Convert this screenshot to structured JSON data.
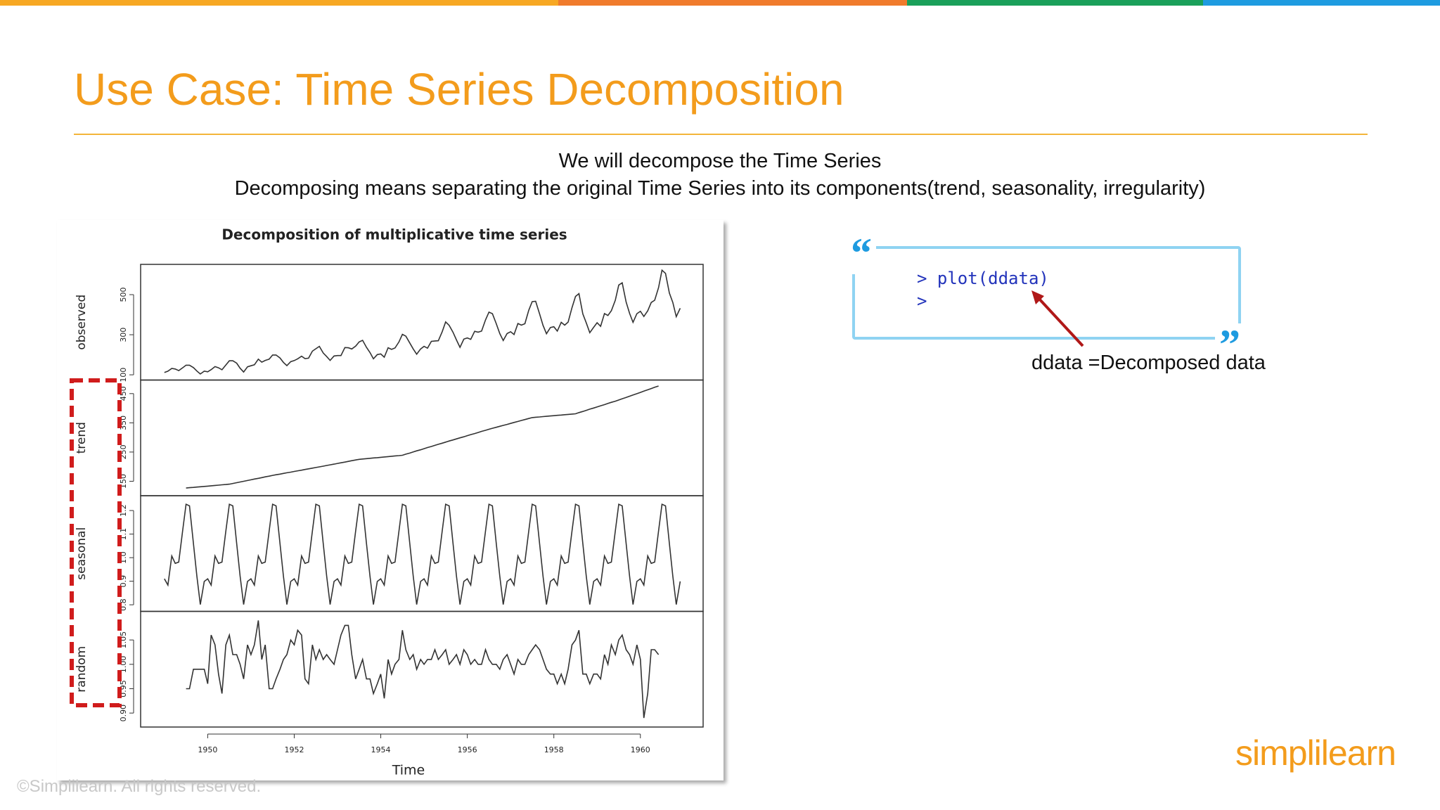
{
  "header": {
    "title": "Use Case: Time Series Decomposition"
  },
  "intro": {
    "lines": [
      "We will decompose the Time Series",
      "Decomposing means separating the original Time Series into its components(trend, seasonality, irregularity)"
    ]
  },
  "chart_data": {
    "type": "line",
    "title": "Decomposition of multiplicative time series",
    "xlabel": "Time",
    "color": "#333333",
    "xlim": [
      1948.45,
      1961.45
    ],
    "xticks": [
      1950,
      1952,
      1954,
      1956,
      1958,
      1960
    ],
    "x": [
      1949,
      1949.08,
      1949.17,
      1949.25,
      1949.33,
      1949.42,
      1949.5,
      1949.58,
      1949.67,
      1949.75,
      1949.83,
      1949.92,
      1950,
      1950.08,
      1950.17,
      1950.25,
      1950.33,
      1950.42,
      1950.5,
      1950.58,
      1950.67,
      1950.75,
      1950.83,
      1950.92,
      1951,
      1951.08,
      1951.17,
      1951.25,
      1951.33,
      1951.42,
      1951.5,
      1951.58,
      1951.67,
      1951.75,
      1951.83,
      1951.92,
      1952,
      1952.08,
      1952.17,
      1952.25,
      1952.33,
      1952.42,
      1952.5,
      1952.58,
      1952.67,
      1952.75,
      1952.83,
      1952.92,
      1953,
      1953.08,
      1953.17,
      1953.25,
      1953.33,
      1953.42,
      1953.5,
      1953.58,
      1953.67,
      1953.75,
      1953.83,
      1953.92,
      1954,
      1954.08,
      1954.17,
      1954.25,
      1954.33,
      1954.42,
      1954.5,
      1954.58,
      1954.67,
      1954.75,
      1954.83,
      1954.92,
      1955,
      1955.08,
      1955.17,
      1955.25,
      1955.33,
      1955.42,
      1955.5,
      1955.58,
      1955.67,
      1955.75,
      1955.83,
      1955.92,
      1956,
      1956.08,
      1956.17,
      1956.25,
      1956.33,
      1956.42,
      1956.5,
      1956.58,
      1956.67,
      1956.75,
      1956.83,
      1956.92,
      1957,
      1957.08,
      1957.17,
      1957.25,
      1957.33,
      1957.42,
      1957.5,
      1957.58,
      1957.67,
      1957.75,
      1957.83,
      1957.92,
      1958,
      1958.08,
      1958.17,
      1958.25,
      1958.33,
      1958.42,
      1958.5,
      1958.58,
      1958.67,
      1958.75,
      1958.83,
      1958.92,
      1959,
      1959.08,
      1959.17,
      1959.25,
      1959.33,
      1959.42,
      1959.5,
      1959.58,
      1959.67,
      1959.75,
      1959.83,
      1959.92,
      1960,
      1960.08,
      1960.17,
      1960.25,
      1960.33,
      1960.42,
      1960.5,
      1960.58,
      1960.67,
      1960.75,
      1960.83,
      1960.92
    ],
    "panels": [
      {
        "ylabel": "observed",
        "ylim": [
          95,
          630
        ],
        "yticks": [
          100,
          300,
          500
        ],
        "values": [
          112,
          118,
          132,
          129,
          121,
          135,
          148,
          148,
          136,
          119,
          104,
          118,
          115,
          126,
          141,
          135,
          125,
          149,
          170,
          170,
          158,
          133,
          114,
          140,
          145,
          150,
          178,
          163,
          172,
          178,
          199,
          199,
          184,
          162,
          146,
          166,
          171,
          180,
          193,
          181,
          183,
          218,
          230,
          242,
          209,
          191,
          172,
          194,
          196,
          196,
          236,
          235,
          229,
          243,
          264,
          272,
          237,
          211,
          180,
          201,
          204,
          188,
          235,
          227,
          234,
          264,
          302,
          293,
          259,
          229,
          203,
          229,
          242,
          233,
          267,
          269,
          270,
          315,
          364,
          347,
          312,
          274,
          237,
          278,
          284,
          277,
          317,
          313,
          318,
          374,
          413,
          405,
          355,
          306,
          271,
          306,
          315,
          301,
          356,
          348,
          355,
          422,
          465,
          467,
          404,
          347,
          305,
          336,
          340,
          318,
          362,
          348,
          363,
          435,
          491,
          505,
          404,
          359,
          310,
          337,
          360,
          342,
          406,
          396,
          420,
          472,
          548,
          559,
          463,
          407,
          362,
          405,
          417,
          391,
          419,
          461,
          472,
          535,
          622,
          606,
          508,
          461,
          390,
          432
        ]
      },
      {
        "ylabel": "trend",
        "ylim": [
          115,
          482
        ],
        "yticks": [
          150,
          250,
          350,
          450
        ],
        "values": [
          null,
          null,
          null,
          null,
          null,
          null,
          126.8,
          127.9,
          129,
          130.1,
          131.2,
          132.3,
          133.4,
          134.5,
          135.6,
          136.7,
          137.8,
          138.9,
          140,
          142.5,
          145,
          147.5,
          150,
          152.5,
          155,
          157.5,
          160,
          162.5,
          165,
          167.5,
          170,
          172.3,
          174.5,
          176.8,
          179,
          181.3,
          183.5,
          185.8,
          188,
          190.3,
          192.5,
          194.8,
          197,
          199.3,
          201.7,
          204,
          206.3,
          208.7,
          211,
          213.3,
          215.7,
          218,
          220.3,
          222.7,
          225,
          226.2,
          227.3,
          228.5,
          229.7,
          230.8,
          232,
          233.2,
          234.3,
          235.5,
          236.7,
          237.8,
          239,
          242.8,
          246.5,
          250.3,
          254,
          257.8,
          261.5,
          265.3,
          269,
          272.8,
          276.5,
          280.3,
          284,
          287.7,
          291.3,
          295,
          298.7,
          302.3,
          306,
          309.7,
          313.3,
          317,
          320.7,
          324.3,
          328,
          331.3,
          334.7,
          338,
          341.3,
          344.7,
          348,
          351.3,
          354.7,
          358,
          361.3,
          364.7,
          368,
          369.1,
          370.2,
          371.3,
          372.3,
          373.4,
          374.5,
          375.6,
          376.7,
          377.8,
          378.8,
          379.9,
          381,
          384.9,
          388.8,
          392.8,
          396.7,
          400.6,
          404.5,
          408.4,
          412.3,
          416.3,
          420.2,
          424.1,
          428,
          432.4,
          436.7,
          441.1,
          445.4,
          449.8,
          454.2,
          458.5,
          462.9,
          467.3,
          471.6,
          476,
          null,
          null,
          null,
          null,
          null,
          null
        ]
      },
      {
        "ylabel": "seasonal",
        "ylim": [
          0.79,
          1.245
        ],
        "yticks": [
          {
            "value": 0.8,
            "label": "0.8"
          },
          {
            "value": 0.9,
            "label": "0.9"
          },
          {
            "value": 1,
            "label": "1.0"
          },
          {
            "value": 1.1,
            "label": "1.1"
          },
          {
            "value": 1.2,
            "label": "1.2"
          }
        ],
        "values": [
          0.9102,
          0.8836,
          1.0073,
          0.9759,
          0.9813,
          1.1127,
          1.2265,
          1.2199,
          1.0604,
          0.9217,
          0.8011,
          0.8993,
          0.9102,
          0.8836,
          1.0073,
          0.9759,
          0.9813,
          1.1127,
          1.2265,
          1.2199,
          1.0604,
          0.9217,
          0.8011,
          0.8993,
          0.9102,
          0.8836,
          1.0073,
          0.9759,
          0.9813,
          1.1127,
          1.2265,
          1.2199,
          1.0604,
          0.9217,
          0.8011,
          0.8993,
          0.9102,
          0.8836,
          1.0073,
          0.9759,
          0.9813,
          1.1127,
          1.2265,
          1.2199,
          1.0604,
          0.9217,
          0.8011,
          0.8993,
          0.9102,
          0.8836,
          1.0073,
          0.9759,
          0.9813,
          1.1127,
          1.2265,
          1.2199,
          1.0604,
          0.9217,
          0.8011,
          0.8993,
          0.9102,
          0.8836,
          1.0073,
          0.9759,
          0.9813,
          1.1127,
          1.2265,
          1.2199,
          1.0604,
          0.9217,
          0.8011,
          0.8993,
          0.9102,
          0.8836,
          1.0073,
          0.9759,
          0.9813,
          1.1127,
          1.2265,
          1.2199,
          1.0604,
          0.9217,
          0.8011,
          0.8993,
          0.9102,
          0.8836,
          1.0073,
          0.9759,
          0.9813,
          1.1127,
          1.2265,
          1.2199,
          1.0604,
          0.9217,
          0.8011,
          0.8993,
          0.9102,
          0.8836,
          1.0073,
          0.9759,
          0.9813,
          1.1127,
          1.2265,
          1.2199,
          1.0604,
          0.9217,
          0.8011,
          0.8993,
          0.9102,
          0.8836,
          1.0073,
          0.9759,
          0.9813,
          1.1127,
          1.2265,
          1.2199,
          1.0604,
          0.9217,
          0.8011,
          0.8993,
          0.9102,
          0.8836,
          1.0073,
          0.9759,
          0.9813,
          1.1127,
          1.2265,
          1.2199,
          1.0604,
          0.9217,
          0.8011,
          0.8993,
          0.9102,
          0.8836,
          1.0073,
          0.9759,
          0.9813,
          1.1127,
          1.2265,
          1.2199,
          1.0604,
          0.9217,
          0.8011,
          0.8993
        ]
      },
      {
        "ylabel": "random",
        "ylim": [
          0.88,
          1.1
        ],
        "yticks": [
          {
            "value": 0.9,
            "label": "0.90"
          },
          {
            "value": 0.95,
            "label": "0.95"
          },
          {
            "value": 1,
            "label": "1.00"
          },
          {
            "value": 1.05,
            "label": "1.05"
          }
        ],
        "values": [
          null,
          null,
          null,
          null,
          null,
          null,
          0.95,
          0.95,
          0.99,
          0.99,
          0.99,
          0.99,
          0.96,
          1.06,
          1.04,
          0.98,
          0.94,
          1.04,
          1.06,
          1.02,
          1.02,
          1.0,
          0.97,
          1.04,
          1.02,
          1.04,
          1.09,
          1.01,
          1.04,
          0.95,
          0.95,
          0.97,
          0.99,
          1.01,
          1.02,
          1.05,
          1.04,
          1.07,
          1.06,
          0.97,
          0.96,
          1.04,
          1.01,
          1.03,
          1.01,
          1.02,
          1.01,
          1.0,
          1.03,
          1.06,
          1.08,
          1.08,
          1.02,
          0.97,
          0.99,
          1.01,
          0.97,
          0.97,
          0.94,
          0.96,
          0.98,
          0.93,
          1.01,
          0.98,
          1.0,
          1.01,
          1.07,
          1.03,
          1.01,
          1.02,
          0.99,
          1.01,
          1.0,
          1.01,
          1.01,
          1.03,
          1.01,
          1.02,
          1.03,
          1.0,
          1.01,
          1.02,
          1.0,
          1.03,
          1.02,
          1.0,
          1.01,
          1.0,
          1.0,
          1.03,
          1.01,
          1.0,
          1.0,
          0.99,
          1.01,
          1.02,
          1.0,
          0.98,
          1.01,
          1.0,
          1.0,
          1.02,
          1.03,
          1.04,
          1.03,
          1.01,
          0.99,
          0.98,
          0.98,
          0.96,
          0.98,
          0.96,
          0.99,
          1.04,
          1.05,
          1.07,
          0.98,
          0.98,
          0.96,
          0.98,
          0.98,
          0.97,
          1.02,
          1.0,
          1.04,
          1.02,
          1.05,
          1.06,
          1.03,
          1.02,
          1.0,
          1.04,
          1.01,
          0.89,
          0.94,
          1.03,
          1.03,
          1.02,
          null,
          null,
          null,
          null,
          null,
          null
        ]
      }
    ]
  },
  "code": {
    "lines": [
      "> plot(ddata)",
      ">"
    ]
  },
  "annotation": "ddata =Decomposed data",
  "logo": "simplilearn",
  "footer": "©Simplilearn. All rights reserved."
}
